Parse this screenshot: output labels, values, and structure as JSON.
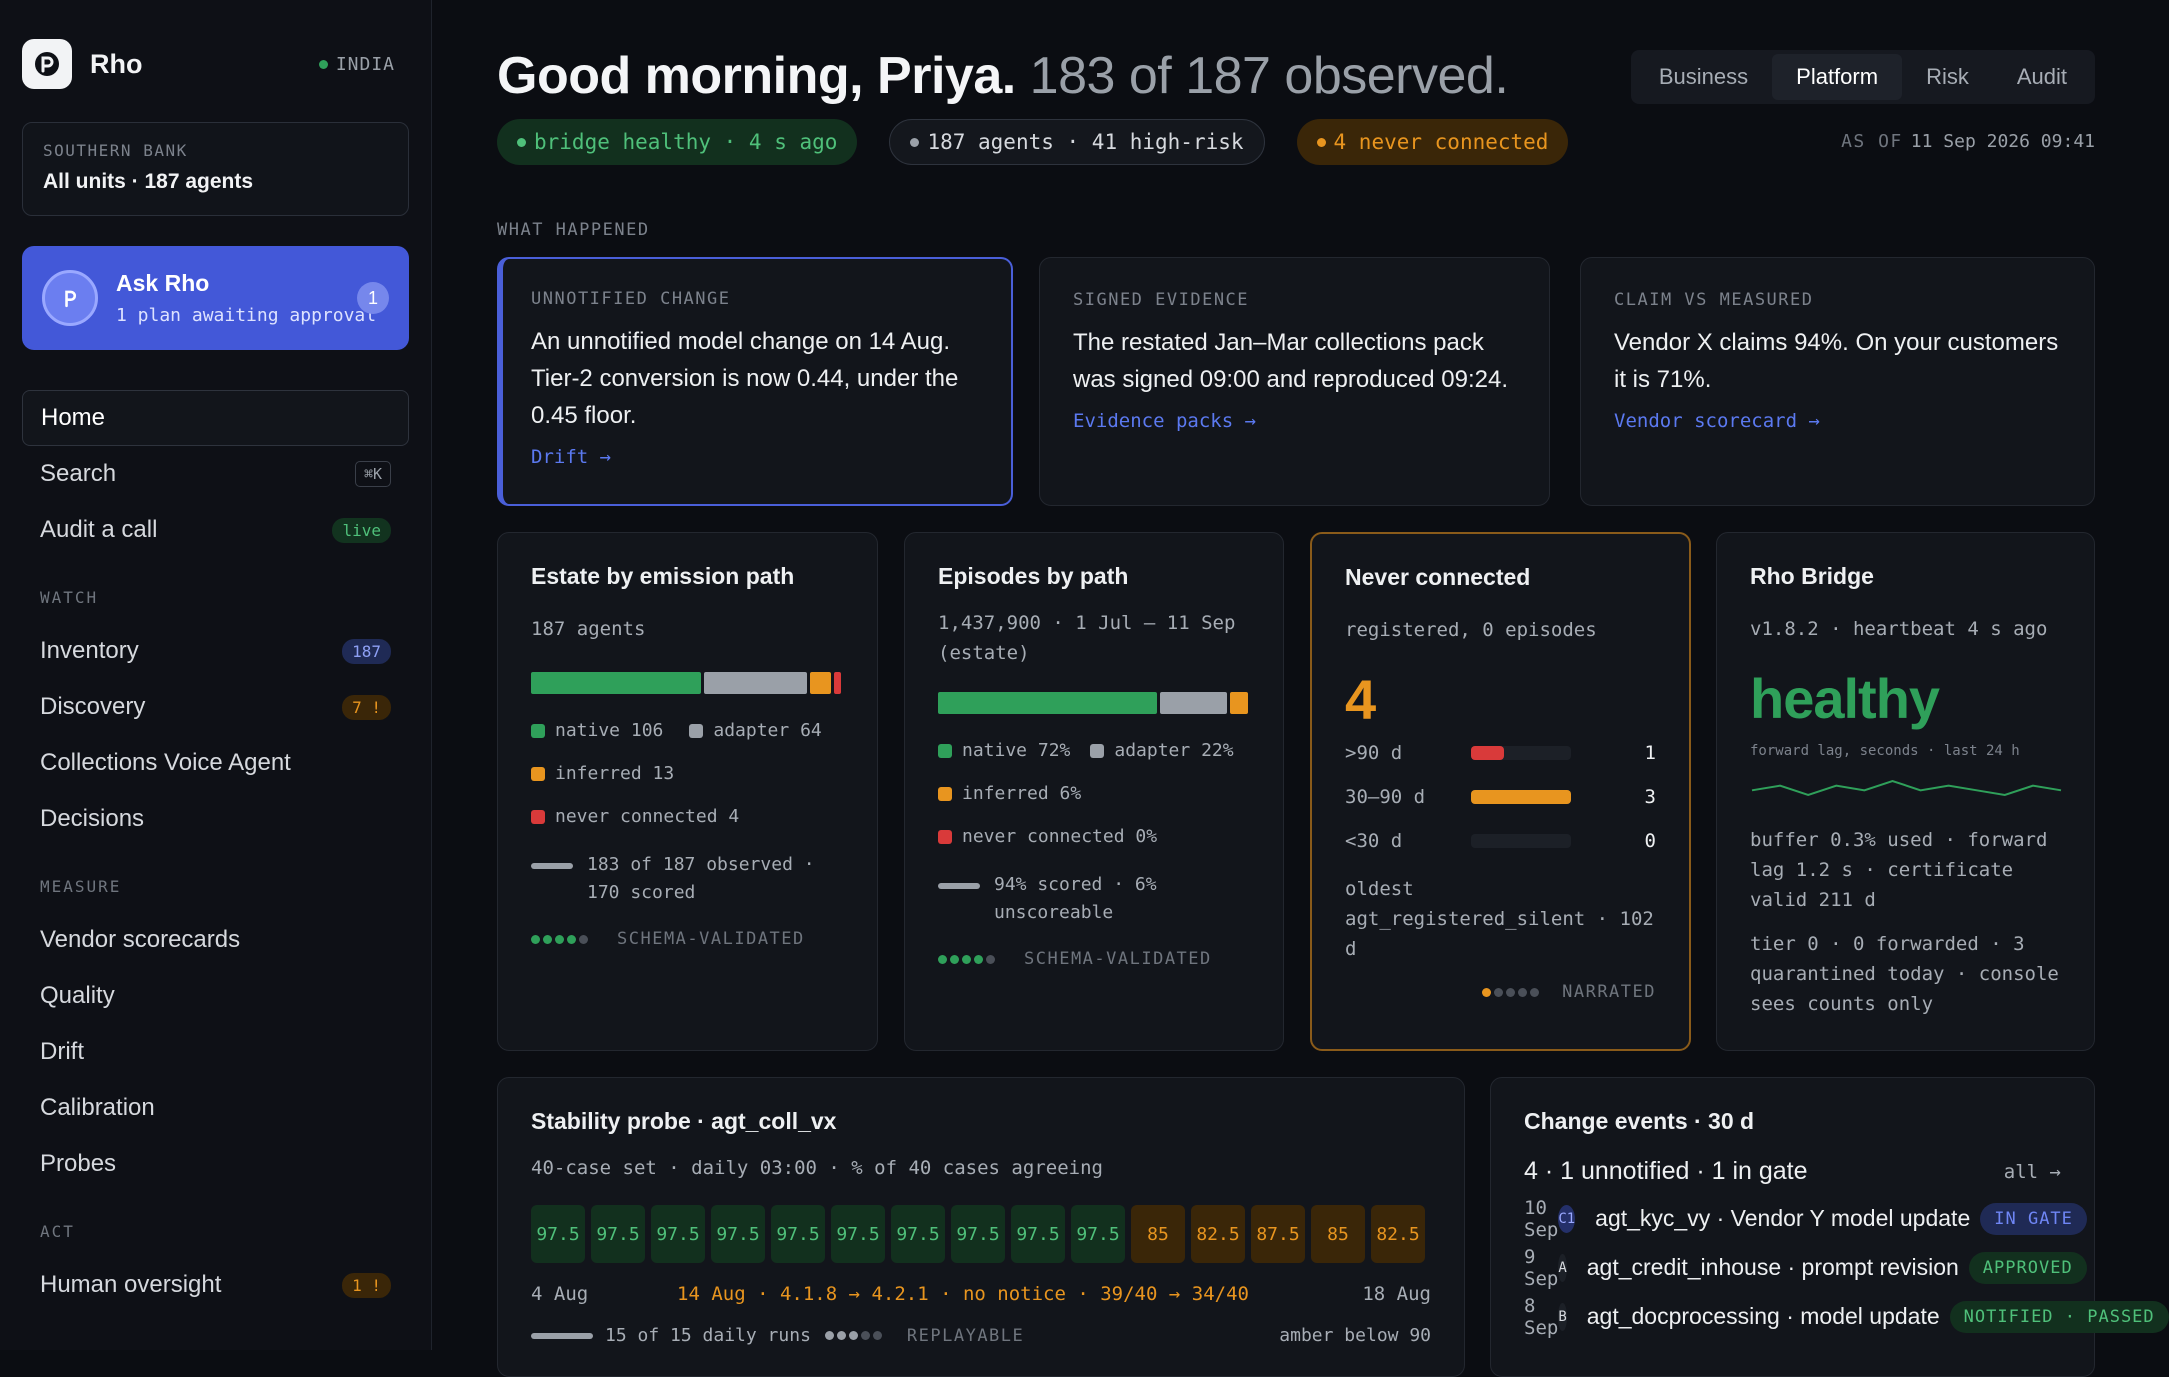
{
  "sidebar": {
    "brand": "Rho",
    "region": "INDIA",
    "org": {
      "label": "SOUTHERN BANK",
      "value": "All units · 187 agents"
    },
    "ask": {
      "title": "Ask Rho",
      "subtitle": "1 plan awaiting approval",
      "badge": "1"
    },
    "top_items": [
      {
        "label": "Home"
      },
      {
        "label": "Search",
        "badge": "⌘K"
      },
      {
        "label": "Audit a call",
        "badge": "live"
      }
    ],
    "sections": [
      {
        "label": "WATCH",
        "items": [
          {
            "label": "Inventory",
            "badge": "187"
          },
          {
            "label": "Discovery",
            "badge": "7 !"
          },
          {
            "label": "Collections Voice Agent"
          },
          {
            "label": "Decisions"
          }
        ]
      },
      {
        "label": "MEASURE",
        "items": [
          {
            "label": "Vendor scorecards"
          },
          {
            "label": "Quality"
          },
          {
            "label": "Drift"
          },
          {
            "label": "Calibration"
          },
          {
            "label": "Probes"
          }
        ]
      },
      {
        "label": "ACT",
        "items": [
          {
            "label": "Human oversight",
            "badge": "1 !"
          }
        ]
      }
    ]
  },
  "header": {
    "greeting": "Good morning, Priya.",
    "summary": "183 of 187 observed.",
    "tabs": [
      "Business",
      "Platform",
      "Risk",
      "Audit"
    ],
    "active_tab": "Platform",
    "pills": {
      "bridge": "bridge healthy · 4 s ago",
      "agents": "187 agents · 41 high-risk",
      "never": "4 never connected"
    },
    "asof_label": "AS OF",
    "asof_value": "11 Sep 2026 09:41"
  },
  "what_happened": {
    "label": "WHAT HAPPENED",
    "cards": [
      {
        "label": "UNNOTIFIED CHANGE",
        "text": "An unnotified model change on 14 Aug. Tier-2 conversion is now 0.44, under the 0.45 floor.",
        "link": "Drift →"
      },
      {
        "label": "SIGNED EVIDENCE",
        "text": "The restated Jan–Mar collections pack was signed 09:00 and reproduced 09:24.",
        "link": "Evidence packs →"
      },
      {
        "label": "CLAIM VS MEASURED",
        "text": "Vendor X claims 94%. On your customers it is 71%.",
        "link": "Vendor scorecard →"
      }
    ]
  },
  "estate": {
    "title": "Estate by emission path",
    "sub": "187 agents",
    "segments": [
      {
        "name": "native",
        "value": 106,
        "color": "#2fa05a"
      },
      {
        "name": "adapter",
        "value": 64,
        "color": "#9aa0a8"
      },
      {
        "name": "inferred",
        "value": 13,
        "color": "#e8951f"
      },
      {
        "name": "never connected",
        "value": 4,
        "color": "#d93a3a"
      }
    ],
    "legend": [
      "native 106",
      "adapter 64",
      "inferred 13",
      "never connected 4"
    ],
    "foot": "183 of 187 observed · 170 scored",
    "status": "SCHEMA-VALIDATED"
  },
  "episodes": {
    "title": "Episodes by path",
    "sub": "1,437,900 · 1 Jul – 11 Sep (estate)",
    "segments": [
      {
        "name": "native",
        "value": 72,
        "color": "#2fa05a"
      },
      {
        "name": "adapter",
        "value": 22,
        "color": "#9aa0a8"
      },
      {
        "name": "inferred",
        "value": 6,
        "color": "#e8951f"
      },
      {
        "name": "never connected",
        "value": 0,
        "color": "#d93a3a"
      }
    ],
    "legend": [
      "native 72%",
      "adapter 22%",
      "inferred 6%",
      "never connected 0%"
    ],
    "foot": "94% scored · 6% unscoreable",
    "status": "SCHEMA-VALIDATED"
  },
  "never": {
    "title": "Never connected",
    "sub": "registered, 0 episodes",
    "count": "4",
    "ages": [
      {
        "label": ">90 d",
        "count": "1",
        "fraction": 0.33,
        "color": "#d93a3a"
      },
      {
        "label": "30–90 d",
        "count": "3",
        "fraction": 1.0,
        "color": "#e8951f"
      },
      {
        "label": "<30 d",
        "count": "0",
        "fraction": 0,
        "color": "#9aa0a8"
      }
    ],
    "oldest": "oldest agt_registered_silent · 102 d",
    "status": "NARRATED"
  },
  "bridge": {
    "title": "Rho Bridge",
    "sub": "v1.8.2 · heartbeat 4 s ago",
    "state": "healthy",
    "spark_label": "forward lag, seconds · last 24 h",
    "spark": [
      1.2,
      1.3,
      1.1,
      1.3,
      1.2,
      1.4,
      1.2,
      1.3,
      1.2,
      1.1,
      1.3,
      1.2
    ],
    "detail1": "buffer 0.3% used · forward lag 1.2 s · certificate valid 211 d",
    "detail2": "tier 0 · 0 forwarded · 3 quarantined today · console sees counts only"
  },
  "probe": {
    "title": "Stability probe · agt_coll_vx",
    "sub": "40-case set · daily 03:00 · % of 40 cases agreeing",
    "cells": [
      "97.5",
      "97.5",
      "97.5",
      "97.5",
      "97.5",
      "97.5",
      "97.5",
      "97.5",
      "97.5",
      "97.5",
      "85",
      "82.5",
      "87.5",
      "85",
      "82.5"
    ],
    "start": "4 Aug",
    "annotation": "14 Aug · 4.1.8 → 4.2.1 · no notice · 39/40 → 34/40",
    "end": "18 Aug",
    "foot": "15 of 15 daily runs",
    "status": "REPLAYABLE",
    "threshold": "amber below 90"
  },
  "changes": {
    "title": "Change events · 30 d",
    "summary": "4 · 1 unnotified · 1 in gate",
    "all_link": "all →",
    "rows": [
      {
        "date": "10 Sep",
        "chip": "C1",
        "name": "agt_kyc_vy · Vendor Y model update",
        "status": "IN GATE"
      },
      {
        "date": "9 Sep",
        "chip": "A",
        "name": "agt_credit_inhouse · prompt revision",
        "status": "APPROVED"
      },
      {
        "date": "8 Sep",
        "chip": "B",
        "name": "agt_docprocessing · model update",
        "status": "NOTIFIED · PASSED"
      }
    ]
  }
}
